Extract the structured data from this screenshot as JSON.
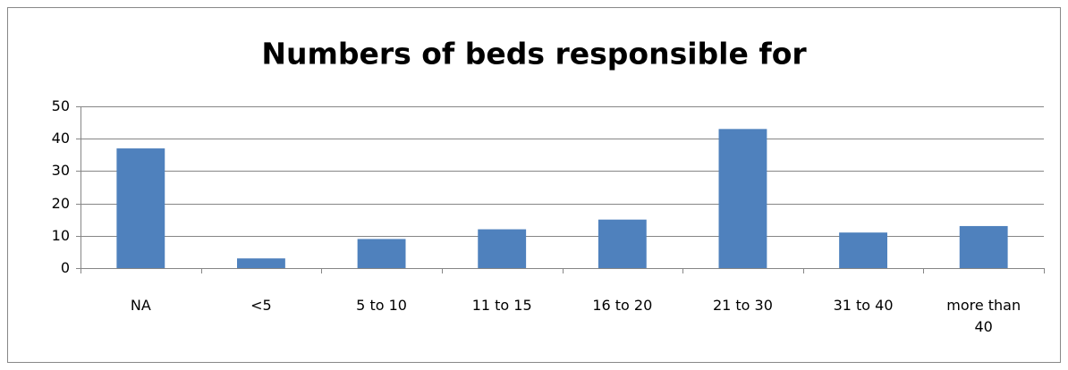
{
  "chart_data": {
    "type": "bar",
    "title": "Numbers of beds responsible for",
    "categories": [
      "NA",
      "<5",
      "5 to 10",
      "11 to 15",
      "16 to 20",
      "21 to 30",
      "31 to 40",
      "more than 40"
    ],
    "values": [
      37,
      3,
      9,
      12,
      15,
      43,
      11,
      13
    ],
    "color": "#4f81bd",
    "ylim": [
      0,
      50
    ],
    "yticks": [
      0,
      10,
      20,
      30,
      40,
      50
    ],
    "grid": true
  }
}
